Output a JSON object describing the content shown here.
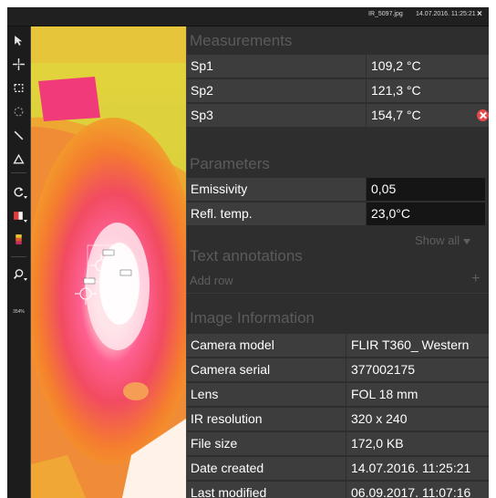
{
  "titlebar": {
    "filename": "IR_5097.jpg",
    "datetime": "14.07.2016. 11:25:21",
    "close_label": "×"
  },
  "toolbar": {
    "icons": [
      "select-arrow-icon",
      "spot-tool-icon",
      "box-tool-icon",
      "circle-tool-icon",
      "line-tool-icon",
      "delta-tool-icon",
      "rotate-icon",
      "palette-icon",
      "color-scale-icon",
      "zoom-icon"
    ],
    "zoom_label": "354%"
  },
  "image": {
    "palette": [
      "#d6d23d",
      "#f5a21f",
      "#f04a66",
      "#ff2f8a",
      "#ffe9ee"
    ],
    "spot_labels": [
      "Sp1",
      "Sp2",
      "Sp3"
    ]
  },
  "panel": {
    "measurements": {
      "title": "Measurements",
      "rows": [
        {
          "name": "Sp1",
          "value": "109,2 °C"
        },
        {
          "name": "Sp2",
          "value": "121,3 °C"
        },
        {
          "name": "Sp3",
          "value": "154,7 °C"
        }
      ]
    },
    "parameters": {
      "title": "Parameters",
      "rows": [
        {
          "name": "Emissivity",
          "value": "0,05"
        },
        {
          "name": "Refl. temp.",
          "value": "23,0°C"
        }
      ],
      "show_all": "Show all"
    },
    "text_annotations": {
      "title": "Text annotations",
      "add_row": "Add row",
      "add_icon": "+"
    },
    "image_information": {
      "title": "Image Information",
      "rows": [
        {
          "name": "Camera model",
          "value": "FLIR T360_ Western"
        },
        {
          "name": "Camera serial",
          "value": "377002175"
        },
        {
          "name": "Lens",
          "value": "FOL 18 mm"
        },
        {
          "name": "IR resolution",
          "value": "320 x 240"
        },
        {
          "name": "File size",
          "value": "172,0 KB"
        },
        {
          "name": "Date created",
          "value": "14.07.2016. 11:25:21"
        },
        {
          "name": "Last modified",
          "value": "06.09.2017. 11:07:16"
        }
      ]
    }
  }
}
